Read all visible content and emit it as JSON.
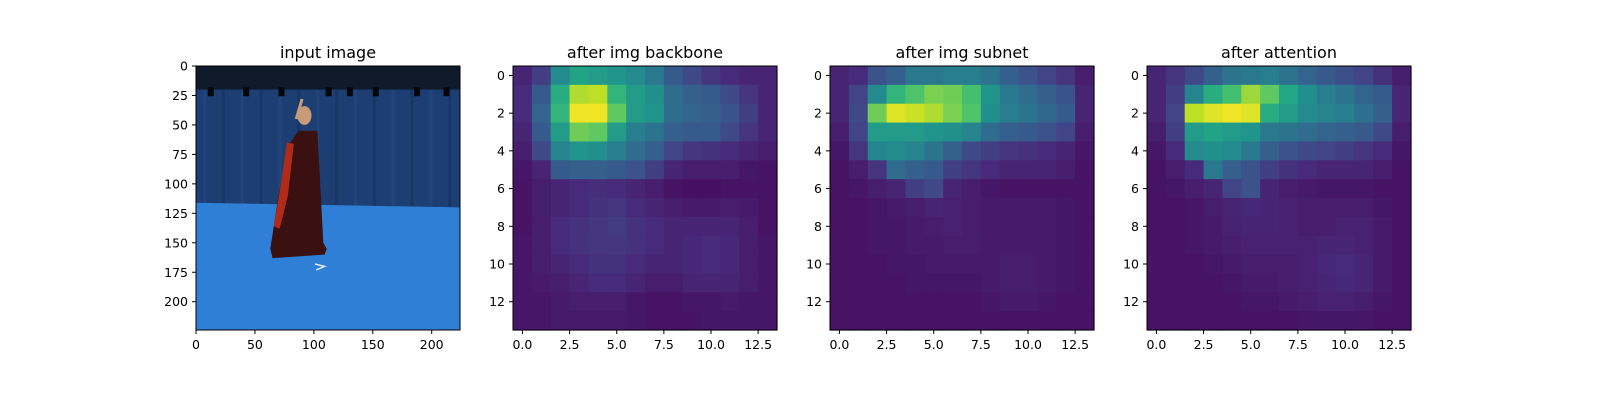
{
  "figure": {
    "panels": [
      {
        "title": "input image"
      },
      {
        "title": "after img backbone"
      },
      {
        "title": "after img subnet"
      },
      {
        "title": "after attention"
      }
    ]
  },
  "chart_data": [
    {
      "type": "image",
      "title": "input image",
      "image_content": "photo of a woman in a long dark red dress standing in a blue-draped motion-capture studio, lighting rig along the top",
      "xlim": [
        0,
        224
      ],
      "ylim": [
        224,
        0
      ],
      "xticks": [
        0,
        50,
        100,
        150,
        200
      ],
      "yticks": [
        0,
        25,
        50,
        75,
        100,
        125,
        150,
        175,
        200
      ],
      "colors": {
        "backdrop": "#1c3e73",
        "floor": "#2f7fd6",
        "dress": "#3a1010",
        "sash": "#b22a18",
        "skin": "#c79b7a"
      }
    },
    {
      "type": "heatmap",
      "title": "after img backbone",
      "colormap": "viridis",
      "vmin": 0,
      "vmax": 1,
      "xticks": [
        "0.0",
        "2.5",
        "5.0",
        "7.5",
        "10.0",
        "12.5"
      ],
      "yticks": [
        "0",
        "2",
        "4",
        "6",
        "8",
        "10",
        "12"
      ],
      "values": [
        [
          0.1,
          0.18,
          0.48,
          0.58,
          0.55,
          0.52,
          0.48,
          0.4,
          0.28,
          0.22,
          0.16,
          0.12,
          0.1,
          0.1
        ],
        [
          0.12,
          0.28,
          0.62,
          0.88,
          0.9,
          0.65,
          0.55,
          0.5,
          0.35,
          0.3,
          0.28,
          0.22,
          0.15,
          0.1
        ],
        [
          0.12,
          0.32,
          0.65,
          0.98,
          0.98,
          0.75,
          0.55,
          0.52,
          0.35,
          0.32,
          0.3,
          0.25,
          0.18,
          0.1
        ],
        [
          0.1,
          0.28,
          0.55,
          0.78,
          0.75,
          0.55,
          0.42,
          0.38,
          0.3,
          0.28,
          0.28,
          0.22,
          0.15,
          0.1
        ],
        [
          0.08,
          0.22,
          0.45,
          0.52,
          0.5,
          0.42,
          0.35,
          0.3,
          0.2,
          0.16,
          0.14,
          0.12,
          0.1,
          0.08
        ],
        [
          0.06,
          0.1,
          0.28,
          0.3,
          0.3,
          0.28,
          0.25,
          0.18,
          0.1,
          0.08,
          0.08,
          0.08,
          0.06,
          0.05
        ],
        [
          0.05,
          0.08,
          0.1,
          0.12,
          0.13,
          0.12,
          0.1,
          0.08,
          0.05,
          0.04,
          0.04,
          0.05,
          0.05,
          0.05
        ],
        [
          0.05,
          0.08,
          0.1,
          0.12,
          0.14,
          0.15,
          0.12,
          0.1,
          0.08,
          0.07,
          0.07,
          0.08,
          0.07,
          0.05
        ],
        [
          0.05,
          0.08,
          0.12,
          0.14,
          0.16,
          0.17,
          0.14,
          0.12,
          0.1,
          0.1,
          0.1,
          0.1,
          0.08,
          0.05
        ],
        [
          0.06,
          0.08,
          0.12,
          0.14,
          0.15,
          0.16,
          0.14,
          0.12,
          0.1,
          0.11,
          0.12,
          0.11,
          0.08,
          0.06
        ],
        [
          0.06,
          0.08,
          0.1,
          0.12,
          0.14,
          0.14,
          0.12,
          0.1,
          0.1,
          0.11,
          0.12,
          0.11,
          0.08,
          0.06
        ],
        [
          0.06,
          0.07,
          0.08,
          0.1,
          0.12,
          0.12,
          0.1,
          0.08,
          0.08,
          0.1,
          0.1,
          0.1,
          0.08,
          0.06
        ],
        [
          0.06,
          0.06,
          0.07,
          0.08,
          0.08,
          0.08,
          0.06,
          0.05,
          0.05,
          0.06,
          0.06,
          0.07,
          0.06,
          0.06
        ],
        [
          0.06,
          0.06,
          0.07,
          0.07,
          0.07,
          0.07,
          0.06,
          0.05,
          0.05,
          0.05,
          0.06,
          0.06,
          0.06,
          0.06
        ]
      ]
    },
    {
      "type": "heatmap",
      "title": "after img subnet",
      "colormap": "viridis",
      "vmin": 0,
      "vmax": 1,
      "xticks": [
        "0.0",
        "2.5",
        "5.0",
        "7.5",
        "10.0",
        "12.5"
      ],
      "yticks": [
        "0",
        "2",
        "4",
        "6",
        "8",
        "10",
        "12"
      ],
      "values": [
        [
          0.1,
          0.12,
          0.25,
          0.3,
          0.4,
          0.4,
          0.42,
          0.42,
          0.38,
          0.3,
          0.25,
          0.2,
          0.15,
          0.08
        ],
        [
          0.1,
          0.2,
          0.48,
          0.65,
          0.72,
          0.8,
          0.78,
          0.7,
          0.52,
          0.4,
          0.35,
          0.3,
          0.25,
          0.1
        ],
        [
          0.1,
          0.22,
          0.78,
          0.95,
          0.92,
          0.88,
          0.8,
          0.72,
          0.5,
          0.42,
          0.38,
          0.33,
          0.28,
          0.1
        ],
        [
          0.08,
          0.2,
          0.55,
          0.55,
          0.55,
          0.52,
          0.5,
          0.45,
          0.35,
          0.3,
          0.28,
          0.25,
          0.2,
          0.08
        ],
        [
          0.06,
          0.15,
          0.45,
          0.48,
          0.45,
          0.38,
          0.3,
          0.22,
          0.18,
          0.15,
          0.14,
          0.12,
          0.1,
          0.06
        ],
        [
          0.05,
          0.08,
          0.15,
          0.35,
          0.3,
          0.28,
          0.18,
          0.15,
          0.12,
          0.1,
          0.1,
          0.1,
          0.08,
          0.05
        ],
        [
          0.05,
          0.06,
          0.08,
          0.1,
          0.18,
          0.22,
          0.1,
          0.08,
          0.06,
          0.05,
          0.05,
          0.05,
          0.05,
          0.05
        ],
        [
          0.05,
          0.05,
          0.06,
          0.07,
          0.08,
          0.1,
          0.09,
          0.08,
          0.07,
          0.07,
          0.07,
          0.07,
          0.06,
          0.05
        ],
        [
          0.05,
          0.05,
          0.06,
          0.06,
          0.07,
          0.08,
          0.09,
          0.08,
          0.07,
          0.07,
          0.07,
          0.07,
          0.06,
          0.05
        ],
        [
          0.05,
          0.05,
          0.06,
          0.06,
          0.07,
          0.07,
          0.08,
          0.08,
          0.07,
          0.07,
          0.07,
          0.07,
          0.06,
          0.05
        ],
        [
          0.05,
          0.05,
          0.05,
          0.06,
          0.06,
          0.07,
          0.07,
          0.07,
          0.07,
          0.08,
          0.08,
          0.07,
          0.06,
          0.05
        ],
        [
          0.05,
          0.05,
          0.05,
          0.05,
          0.06,
          0.06,
          0.06,
          0.06,
          0.07,
          0.08,
          0.08,
          0.07,
          0.06,
          0.05
        ],
        [
          0.05,
          0.05,
          0.05,
          0.05,
          0.05,
          0.05,
          0.05,
          0.05,
          0.06,
          0.07,
          0.07,
          0.06,
          0.05,
          0.05
        ],
        [
          0.05,
          0.05,
          0.05,
          0.05,
          0.05,
          0.05,
          0.05,
          0.05,
          0.05,
          0.05,
          0.05,
          0.05,
          0.05,
          0.05
        ]
      ]
    },
    {
      "type": "heatmap",
      "title": "after attention",
      "colormap": "viridis",
      "vmin": 0,
      "vmax": 1,
      "xticks": [
        "0.0",
        "2.5",
        "5.0",
        "7.5",
        "10.0",
        "12.5"
      ],
      "yticks": [
        "0",
        "2",
        "4",
        "6",
        "8",
        "10",
        "12"
      ],
      "values": [
        [
          0.1,
          0.15,
          0.22,
          0.3,
          0.38,
          0.4,
          0.42,
          0.38,
          0.32,
          0.28,
          0.24,
          0.2,
          0.14,
          0.08
        ],
        [
          0.1,
          0.18,
          0.45,
          0.62,
          0.7,
          0.85,
          0.75,
          0.6,
          0.5,
          0.42,
          0.38,
          0.32,
          0.28,
          0.1
        ],
        [
          0.1,
          0.2,
          0.9,
          0.95,
          0.98,
          0.95,
          0.62,
          0.55,
          0.48,
          0.45,
          0.42,
          0.36,
          0.3,
          0.1
        ],
        [
          0.08,
          0.18,
          0.55,
          0.58,
          0.55,
          0.52,
          0.4,
          0.38,
          0.35,
          0.32,
          0.3,
          0.28,
          0.22,
          0.08
        ],
        [
          0.06,
          0.12,
          0.48,
          0.5,
          0.48,
          0.4,
          0.3,
          0.25,
          0.22,
          0.2,
          0.18,
          0.15,
          0.12,
          0.06
        ],
        [
          0.05,
          0.08,
          0.12,
          0.4,
          0.3,
          0.25,
          0.18,
          0.14,
          0.12,
          0.1,
          0.1,
          0.1,
          0.08,
          0.05
        ],
        [
          0.05,
          0.06,
          0.08,
          0.1,
          0.2,
          0.25,
          0.1,
          0.08,
          0.07,
          0.06,
          0.06,
          0.06,
          0.05,
          0.05
        ],
        [
          0.05,
          0.05,
          0.06,
          0.08,
          0.1,
          0.11,
          0.1,
          0.09,
          0.08,
          0.08,
          0.08,
          0.08,
          0.06,
          0.05
        ],
        [
          0.05,
          0.05,
          0.06,
          0.07,
          0.09,
          0.1,
          0.1,
          0.09,
          0.08,
          0.08,
          0.09,
          0.09,
          0.07,
          0.05
        ],
        [
          0.05,
          0.05,
          0.06,
          0.07,
          0.08,
          0.09,
          0.09,
          0.09,
          0.09,
          0.1,
          0.1,
          0.09,
          0.07,
          0.05
        ],
        [
          0.05,
          0.05,
          0.05,
          0.06,
          0.07,
          0.08,
          0.08,
          0.08,
          0.09,
          0.11,
          0.12,
          0.1,
          0.07,
          0.05
        ],
        [
          0.05,
          0.05,
          0.05,
          0.05,
          0.06,
          0.07,
          0.07,
          0.08,
          0.09,
          0.1,
          0.11,
          0.1,
          0.07,
          0.05
        ],
        [
          0.05,
          0.05,
          0.05,
          0.05,
          0.05,
          0.06,
          0.06,
          0.07,
          0.08,
          0.09,
          0.09,
          0.08,
          0.06,
          0.05
        ],
        [
          0.05,
          0.05,
          0.05,
          0.05,
          0.05,
          0.05,
          0.05,
          0.05,
          0.06,
          0.06,
          0.06,
          0.06,
          0.05,
          0.05
        ]
      ]
    }
  ]
}
